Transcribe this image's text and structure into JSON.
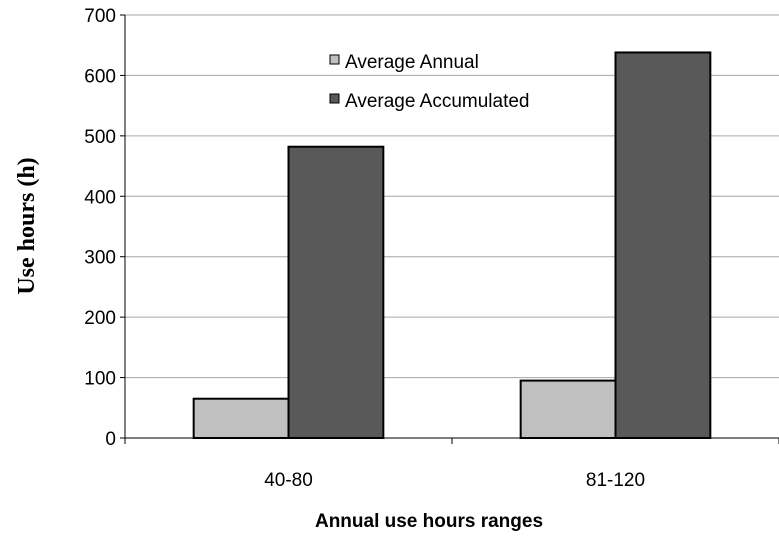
{
  "chart_data": {
    "type": "bar",
    "categories": [
      "40-80",
      "81-120"
    ],
    "series": [
      {
        "name": "Average Annual",
        "values": [
          65,
          95
        ],
        "color": "#c0c0c0"
      },
      {
        "name": "Average Accumulated",
        "values": [
          482,
          638
        ],
        "color": "#595959"
      }
    ],
    "title": "",
    "xlabel": "Annual use hours ranges",
    "ylabel": "Use hours (h)",
    "ylim": [
      0,
      700
    ],
    "yticks": [
      "0",
      "100",
      "200",
      "300",
      "400",
      "500",
      "600",
      "700"
    ],
    "grid": true,
    "legend_position": "top-center"
  }
}
